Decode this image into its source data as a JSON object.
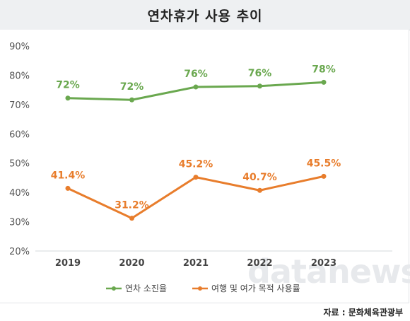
{
  "header": {
    "title": "연차휴가 사용 추이"
  },
  "watermark": "datanews",
  "footer": {
    "source": "자료 : 문화체육관광부"
  },
  "colors": {
    "series1": "#6aa84f",
    "series2": "#e87d2c"
  },
  "chart_data": {
    "type": "line",
    "title": "연차휴가 사용 추이",
    "x": [
      "2019",
      "2020",
      "2021",
      "2022",
      "2023"
    ],
    "ylim": [
      20,
      90
    ],
    "yticks": [
      "20%",
      "30%",
      "40%",
      "50%",
      "60%",
      "70%",
      "80%",
      "90%"
    ],
    "ytick_values": [
      20,
      30,
      40,
      50,
      60,
      70,
      80,
      90
    ],
    "grid": false,
    "legend_position": "bottom",
    "series": [
      {
        "name": "연차 소진율",
        "values": [
          72.2,
          71.6,
          76.0,
          76.3,
          77.6
        ],
        "labels": [
          "72%",
          "72%",
          "76%",
          "76%",
          "78%"
        ]
      },
      {
        "name": "여행 및 여가 목적 사용률",
        "values": [
          41.4,
          31.2,
          45.2,
          40.7,
          45.5
        ],
        "labels": [
          "41.4%",
          "31.2%",
          "45.2%",
          "40.7%",
          "45.5%"
        ]
      }
    ]
  }
}
